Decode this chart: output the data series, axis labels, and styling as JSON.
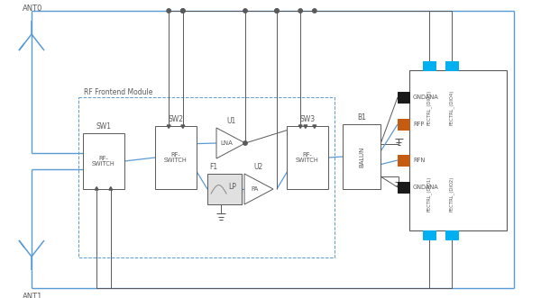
{
  "bg_color": "#ffffff",
  "line_color": "#5b9bd5",
  "dark_line": "#595959",
  "dashed_color": "#5b9bd5",
  "cyan_color": "#00b0f0",
  "brown_color": "#c55a11",
  "black_color": "#1a1a1a",
  "lp_fill": "#e0e0e0",
  "ant0_label": "ANT0",
  "ant1_label": "ANT1",
  "sw1_label": "SW1",
  "sw2_label": "SW2",
  "sw3_label": "SW3",
  "b1_label": "B1",
  "u1_label": "U1",
  "u2_label": "U2",
  "f1_label": "F1",
  "lna_label": "LNA",
  "pa_label": "PA",
  "lp_label": "LP",
  "balun_label": "BALUN",
  "rfsw_label": "RF-\nSWITCH",
  "rfmodule_label": "RF Frontend Module",
  "gndana_label": "GNDANA",
  "rfp_label": "RFP",
  "rfn_label": "RFN",
  "fectrl_dio3": "FECTRL_(DIO3)",
  "fectrl_dio4": "FECTRL_(DIO4)",
  "fectrl_dio1": "FECTRL_(DIO1)",
  "fectrl_dio2": "FECTRL_(DIO2)"
}
